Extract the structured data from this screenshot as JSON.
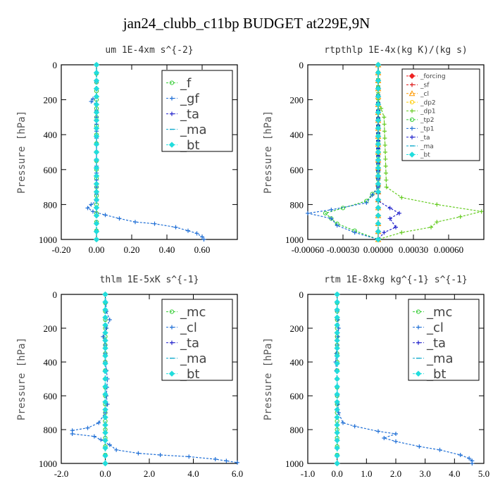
{
  "figure_title": "jan24_clubb_c11bp  BUDGET at229E,9N",
  "chart_data": [
    {
      "type": "line",
      "title": "um  1E-4xm s^{-2}",
      "ylabel": "Pressure [hPa]",
      "xlim": [
        -0.2,
        0.8
      ],
      "ylim": [
        1000,
        0
      ],
      "xticks": [
        "-0.20",
        "0.00",
        "0.20",
        "0.40",
        "0.60"
      ],
      "xtick_values": [
        -0.2,
        0,
        0.2,
        0.4,
        0.6
      ],
      "yticks": [
        "0",
        "200",
        "400",
        "600",
        "800",
        "1000"
      ],
      "ytick_values": [
        0,
        200,
        400,
        600,
        800,
        1000
      ],
      "legend": {
        "position": "top-right",
        "font_size": 18
      },
      "series": [
        {
          "name": "_f",
          "color": "#33cc33",
          "marker": "circle",
          "points": [
            [
              0,
              0
            ],
            [
              0,
              100
            ],
            [
              0,
              200
            ],
            [
              0,
              300
            ],
            [
              0,
              400
            ],
            [
              0,
              500
            ],
            [
              0,
              600
            ],
            [
              0,
              700
            ],
            [
              0,
              800
            ],
            [
              0,
              900
            ],
            [
              0,
              1000
            ]
          ]
        },
        {
          "name": "_gf",
          "color": "#1f6fd6",
          "marker": "plus",
          "points": [
            [
              0,
              0
            ],
            [
              0,
              100
            ],
            [
              0,
              180
            ],
            [
              -0.02,
              195
            ],
            [
              -0.03,
              210
            ],
            [
              0,
              225
            ],
            [
              0,
              300
            ],
            [
              0,
              500
            ],
            [
              0,
              700
            ],
            [
              0,
              780
            ],
            [
              -0.03,
              800
            ],
            [
              -0.05,
              820
            ],
            [
              -0.02,
              840
            ],
            [
              0.05,
              860
            ],
            [
              0.13,
              880
            ],
            [
              0.22,
              900
            ],
            [
              0.33,
              910
            ],
            [
              0.45,
              930
            ],
            [
              0.52,
              950
            ],
            [
              0.57,
              965
            ],
            [
              0.6,
              985
            ],
            [
              0.61,
              1000
            ]
          ]
        },
        {
          "name": "_ta",
          "color": "#2222cc",
          "marker": "plus",
          "points": [
            [
              0,
              0
            ],
            [
              0,
              500
            ],
            [
              0,
              1000
            ]
          ]
        },
        {
          "name": "_ma",
          "color": "#11aacc",
          "marker": "dash",
          "points": [
            [
              0,
              0
            ],
            [
              0,
              500
            ],
            [
              0,
              1000
            ]
          ]
        },
        {
          "name": "_bt",
          "color": "#22dddd",
          "marker": "diamond",
          "points": [
            [
              0,
              0
            ],
            [
              0,
              500
            ],
            [
              0,
              1000
            ]
          ]
        }
      ]
    },
    {
      "type": "line",
      "title": "rtpthlp  1E-4x(kg K)/(kg s)",
      "ylabel": "Pressure [hPa]",
      "xlim": [
        -0.0006,
        0.0009
      ],
      "ylim": [
        1000,
        0
      ],
      "xticks": [
        "-0.00060",
        "-0.00030",
        "0.00000",
        "0.00030",
        "0.00060"
      ],
      "xtick_values": [
        -0.0006,
        -0.0003,
        0,
        0.0003,
        0.0006
      ],
      "yticks": [
        "0",
        "200",
        "400",
        "600",
        "800",
        "1000"
      ],
      "ytick_values": [
        0,
        200,
        400,
        600,
        800,
        1000
      ],
      "legend": {
        "position": "top-right",
        "font_size": 9
      },
      "series": [
        {
          "name": "_forcing",
          "color": "#ee2222",
          "marker": "diamond",
          "points": [
            [
              0,
              0
            ],
            [
              0,
              500
            ],
            [
              0,
              1000
            ]
          ]
        },
        {
          "name": "_sf",
          "color": "#dd1111",
          "marker": "plus",
          "points": [
            [
              0,
              0
            ],
            [
              0,
              500
            ],
            [
              0,
              1000
            ]
          ]
        },
        {
          "name": "_cl",
          "color": "#ff9900",
          "marker": "triangle",
          "points": [
            [
              0,
              0
            ],
            [
              0,
              500
            ],
            [
              0,
              1000
            ]
          ]
        },
        {
          "name": "_dp2",
          "color": "#ffcc00",
          "marker": "circle",
          "points": [
            [
              0,
              0
            ],
            [
              0,
              500
            ],
            [
              0,
              1000
            ]
          ]
        },
        {
          "name": "_dp1",
          "color": "#66cc22",
          "marker": "plus",
          "points": [
            [
              0,
              0
            ],
            [
              0,
              200
            ],
            [
              5e-05,
              300
            ],
            [
              6e-05,
              500
            ],
            [
              7e-05,
              700
            ],
            [
              0.0002,
              760
            ],
            [
              0.0005,
              800
            ],
            [
              0.00088,
              840
            ],
            [
              0.0007,
              870
            ],
            [
              0.0005,
              900
            ],
            [
              0.00045,
              930
            ],
            [
              0.0002,
              960
            ],
            [
              0,
              1000
            ]
          ]
        },
        {
          "name": "_tp2",
          "color": "#33cc33",
          "marker": "circle",
          "points": [
            [
              0,
              0
            ],
            [
              0,
              700
            ],
            [
              -0.0001,
              780
            ],
            [
              -0.0003,
              820
            ],
            [
              -0.00045,
              850
            ],
            [
              -0.0004,
              880
            ],
            [
              -0.00035,
              910
            ],
            [
              -0.0002,
              950
            ],
            [
              0,
              1000
            ]
          ]
        },
        {
          "name": "_tp1",
          "color": "#1f6fd6",
          "marker": "plus",
          "points": [
            [
              0,
              0
            ],
            [
              0,
              700
            ],
            [
              -0.0001,
              790
            ],
            [
              -0.0004,
              830
            ],
            [
              -0.0006,
              850
            ],
            [
              -0.0004,
              880
            ],
            [
              -0.00035,
              920
            ],
            [
              -0.0002,
              960
            ],
            [
              0,
              1000
            ]
          ]
        },
        {
          "name": "_ta",
          "color": "#2222cc",
          "marker": "plus",
          "points": [
            [
              0,
              0
            ],
            [
              0,
              780
            ],
            [
              0.0001,
              820
            ],
            [
              0.00018,
              850
            ],
            [
              0.0001,
              880
            ],
            [
              0.00015,
              930
            ],
            [
              5e-05,
              960
            ],
            [
              0,
              1000
            ]
          ]
        },
        {
          "name": "_ma",
          "color": "#11aacc",
          "marker": "dash",
          "points": [
            [
              0,
              0
            ],
            [
              0,
              500
            ],
            [
              0,
              1000
            ]
          ]
        },
        {
          "name": "_bt",
          "color": "#22dddd",
          "marker": "diamond",
          "points": [
            [
              0,
              0
            ],
            [
              0,
              500
            ],
            [
              0,
              1000
            ]
          ]
        }
      ]
    },
    {
      "type": "line",
      "title": "thlm  1E-5xK s^{-1}",
      "ylabel": "Pressure [hPa]",
      "xlim": [
        -2,
        6
      ],
      "ylim": [
        1000,
        0
      ],
      "xticks": [
        "-2.0",
        "0.0",
        "2.0",
        "4.0",
        "6.0"
      ],
      "xtick_values": [
        -2,
        0,
        2,
        4,
        6
      ],
      "yticks": [
        "0",
        "200",
        "400",
        "600",
        "800",
        "1000"
      ],
      "ytick_values": [
        0,
        200,
        400,
        600,
        800,
        1000
      ],
      "legend": {
        "position": "top-right",
        "font_size": 18
      },
      "series": [
        {
          "name": "_mc",
          "color": "#33cc33",
          "marker": "circle",
          "points": [
            [
              0,
              0
            ],
            [
              0,
              100
            ],
            [
              0,
              200
            ],
            [
              0,
              300
            ],
            [
              0,
              400
            ],
            [
              0,
              500
            ],
            [
              0,
              600
            ],
            [
              0,
              700
            ],
            [
              0,
              800
            ],
            [
              0,
              900
            ],
            [
              0,
              1000
            ]
          ]
        },
        {
          "name": "_cl",
          "color": "#1f6fd6",
          "marker": "plus",
          "points": [
            [
              0,
              0
            ],
            [
              0.05,
              100
            ],
            [
              0.2,
              150
            ],
            [
              0.05,
              200
            ],
            [
              -0.1,
              250
            ],
            [
              0,
              300
            ],
            [
              0,
              400
            ],
            [
              0.1,
              500
            ],
            [
              0.05,
              600
            ],
            [
              0.1,
              650
            ],
            [
              0,
              700
            ],
            [
              -0.3,
              760
            ],
            [
              -0.8,
              790
            ],
            [
              -1.5,
              805
            ],
            [
              -1.5,
              825
            ],
            [
              -0.5,
              840
            ],
            [
              -0.2,
              860
            ],
            [
              0.2,
              890
            ],
            [
              0.5,
              920
            ],
            [
              1.5,
              940
            ],
            [
              2.5,
              950
            ],
            [
              3.8,
              960
            ],
            [
              5.0,
              975
            ],
            [
              5.5,
              985
            ],
            [
              6.0,
              995
            ]
          ]
        },
        {
          "name": "_ta",
          "color": "#2222cc",
          "marker": "plus",
          "points": [
            [
              0,
              0
            ],
            [
              0,
              500
            ],
            [
              0,
              1000
            ]
          ]
        },
        {
          "name": "_ma",
          "color": "#11aacc",
          "marker": "dash",
          "points": [
            [
              0,
              0
            ],
            [
              0,
              500
            ],
            [
              0,
              1000
            ]
          ]
        },
        {
          "name": "_bt",
          "color": "#22dddd",
          "marker": "diamond",
          "points": [
            [
              0,
              0
            ],
            [
              0,
              500
            ],
            [
              0,
              1000
            ]
          ]
        }
      ]
    },
    {
      "type": "line",
      "title": "rtm  1E-8xkg kg^{-1} s^{-1}",
      "ylabel": "Pressure [hPa]",
      "xlim": [
        -1,
        5
      ],
      "ylim": [
        1000,
        0
      ],
      "xticks": [
        "-1.0",
        "0.0",
        "1.0",
        "2.0",
        "3.0",
        "4.0",
        "5.0"
      ],
      "xtick_values": [
        -1,
        0,
        1,
        2,
        3,
        4,
        5
      ],
      "yticks": [
        "0",
        "200",
        "400",
        "600",
        "800",
        "1000"
      ],
      "ytick_values": [
        0,
        200,
        400,
        600,
        800,
        1000
      ],
      "legend": {
        "position": "top-right",
        "font_size": 18
      },
      "series": [
        {
          "name": "_mc",
          "color": "#33cc33",
          "marker": "circle",
          "points": [
            [
              0,
              0
            ],
            [
              0,
              100
            ],
            [
              0,
              200
            ],
            [
              0,
              300
            ],
            [
              0,
              400
            ],
            [
              0,
              500
            ],
            [
              0,
              600
            ],
            [
              0,
              700
            ],
            [
              0,
              800
            ],
            [
              0,
              900
            ],
            [
              0,
              1000
            ]
          ]
        },
        {
          "name": "_cl",
          "color": "#1f6fd6",
          "marker": "plus",
          "points": [
            [
              0,
              0
            ],
            [
              0,
              100
            ],
            [
              0.05,
              200
            ],
            [
              0,
              300
            ],
            [
              -0.05,
              400
            ],
            [
              0,
              500
            ],
            [
              0,
              600
            ],
            [
              0.05,
              700
            ],
            [
              0.2,
              760
            ],
            [
              0.6,
              780
            ],
            [
              1.4,
              810
            ],
            [
              2.0,
              825
            ],
            [
              1.6,
              850
            ],
            [
              2.0,
              870
            ],
            [
              2.8,
              900
            ],
            [
              3.5,
              920
            ],
            [
              4.2,
              950
            ],
            [
              4.5,
              970
            ],
            [
              4.6,
              985
            ],
            [
              4.6,
              1000
            ]
          ]
        },
        {
          "name": "_ta",
          "color": "#2222cc",
          "marker": "plus",
          "points": [
            [
              0,
              0
            ],
            [
              0,
              500
            ],
            [
              0,
              1000
            ]
          ]
        },
        {
          "name": "_ma",
          "color": "#11aacc",
          "marker": "dash",
          "points": [
            [
              0,
              0
            ],
            [
              0,
              500
            ],
            [
              0,
              1000
            ]
          ]
        },
        {
          "name": "_bt",
          "color": "#22dddd",
          "marker": "diamond",
          "points": [
            [
              0,
              0
            ],
            [
              0,
              500
            ],
            [
              0,
              1000
            ]
          ]
        }
      ]
    }
  ]
}
